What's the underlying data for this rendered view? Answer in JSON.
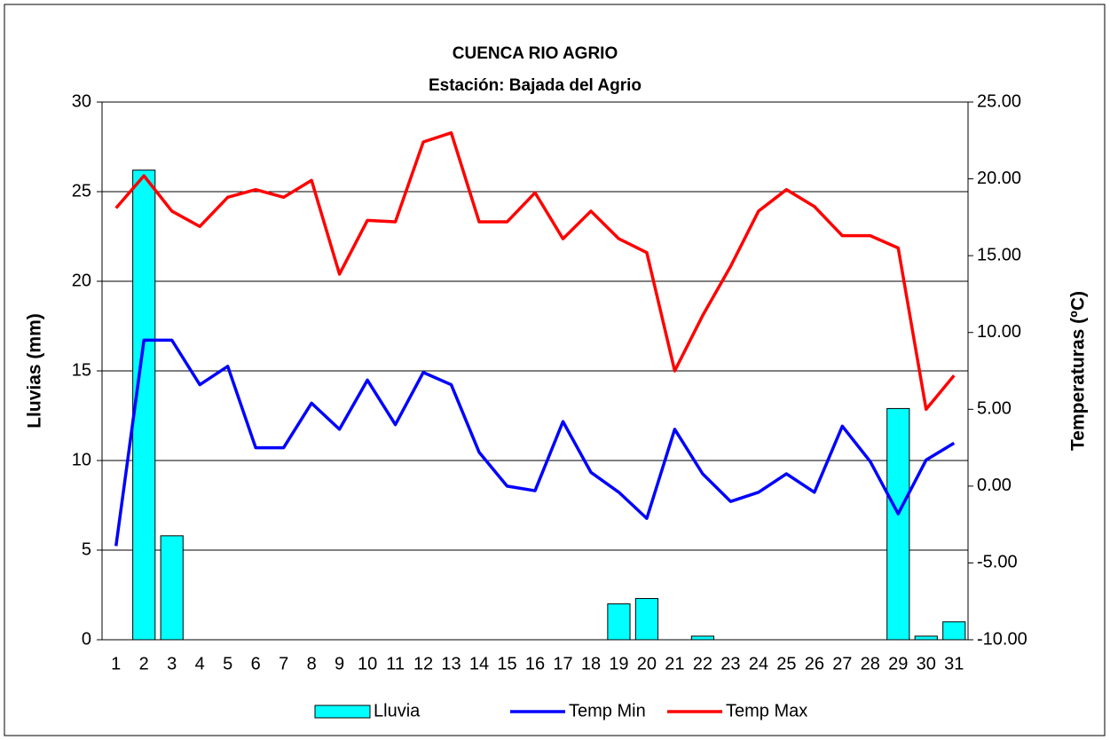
{
  "chart_data": {
    "type": "bar_line",
    "title": "CUENCA RIO AGRIO",
    "subtitle": "Estación: Bajada del Agrio",
    "ylabel": "Lluvias (mm)",
    "y2label": "Temperaturas (ºC)",
    "categories": [
      "1",
      "2",
      "3",
      "4",
      "5",
      "6",
      "7",
      "8",
      "9",
      "10",
      "11",
      "12",
      "13",
      "14",
      "15",
      "16",
      "17",
      "18",
      "19",
      "20",
      "21",
      "22",
      "23",
      "24",
      "25",
      "26",
      "27",
      "28",
      "29",
      "30",
      "31"
    ],
    "series": [
      {
        "name": "Lluvia",
        "type": "bar",
        "color": "#00ffff",
        "values": [
          0,
          26.2,
          5.8,
          0,
          0,
          0,
          0,
          0,
          0,
          0,
          0,
          0,
          0,
          0,
          0,
          0,
          0,
          0,
          2.0,
          2.3,
          0,
          0.2,
          0,
          0,
          0,
          0,
          0,
          0,
          12.9,
          0.2,
          1.0
        ]
      },
      {
        "name": "Temp Min",
        "type": "line",
        "axis": "y2",
        "color": "#0000ff",
        "values": [
          -3.9,
          9.5,
          9.5,
          6.6,
          7.8,
          2.5,
          2.5,
          5.4,
          3.7,
          6.9,
          4.0,
          7.4,
          6.6,
          2.2,
          0.0,
          -0.3,
          4.2,
          0.9,
          -0.4,
          -2.1,
          3.7,
          0.8,
          -1.0,
          -0.4,
          0.8,
          -0.4,
          3.9,
          1.6,
          -1.8,
          1.7,
          2.8
        ]
      },
      {
        "name": "Temp Max",
        "type": "line",
        "axis": "y2",
        "color": "#ff0000",
        "values": [
          18.1,
          20.2,
          17.9,
          16.9,
          18.8,
          19.3,
          18.8,
          19.9,
          13.8,
          17.3,
          17.2,
          22.4,
          23.0,
          17.2,
          17.2,
          19.1,
          16.1,
          17.9,
          16.1,
          15.2,
          7.5,
          11.1,
          14.3,
          17.9,
          19.3,
          18.2,
          16.3,
          16.3,
          15.5,
          5.0,
          7.2
        ]
      }
    ],
    "ylim": [
      0,
      30
    ],
    "yticks": [
      0,
      5,
      10,
      15,
      20,
      25,
      30
    ],
    "y2lim": [
      -10,
      25
    ],
    "y2ticks": [
      {
        "value": -10,
        "label": "-10.00"
      },
      {
        "value": -5,
        "label": "-5.00"
      },
      {
        "value": 0,
        "label": "0.00"
      },
      {
        "value": 5,
        "label": "5.00"
      },
      {
        "value": 10,
        "label": "10.00"
      },
      {
        "value": 15,
        "label": "15.00"
      },
      {
        "value": 20,
        "label": "20.00"
      },
      {
        "value": 25,
        "label": "25.00"
      }
    ],
    "grid": true,
    "legend": "bottom"
  }
}
